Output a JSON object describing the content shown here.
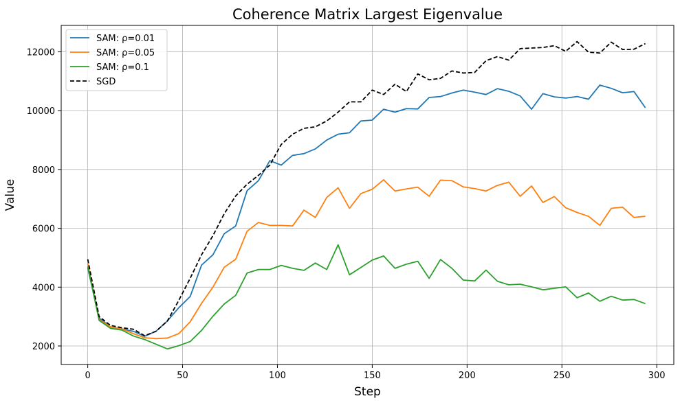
{
  "chart_data": {
    "type": "line",
    "title": "Coherence Matrix Largest Eigenvalue",
    "xlabel": "Step",
    "ylabel": "Value",
    "xlim": [
      -14,
      309
    ],
    "ylim": [
      1370,
      12900
    ],
    "xticks": [
      0,
      50,
      100,
      150,
      200,
      250,
      300
    ],
    "yticks": [
      2000,
      4000,
      6000,
      8000,
      10000,
      12000
    ],
    "grid": true,
    "legend_position": "top-left",
    "x": [
      0,
      6,
      12,
      18,
      24,
      30,
      36,
      42,
      48,
      54,
      60,
      66,
      72,
      78,
      84,
      90,
      96,
      102,
      108,
      114,
      120,
      126,
      132,
      138,
      144,
      150,
      156,
      162,
      168,
      174,
      180,
      186,
      192,
      198,
      204,
      210,
      216,
      222,
      228,
      234,
      240,
      246,
      252,
      258,
      264,
      270,
      276,
      282,
      288,
      294
    ],
    "series": [
      {
        "name": "SAM: ρ=0.01",
        "color": "#1f77b4",
        "dash": "solid",
        "values": [
          4650,
          2950,
          2650,
          2580,
          2500,
          2330,
          2500,
          2850,
          3300,
          3680,
          4750,
          5100,
          5820,
          6080,
          7280,
          7620,
          8300,
          8150,
          8480,
          8540,
          8700,
          9000,
          9200,
          9250,
          9650,
          9680,
          10050,
          9950,
          10070,
          10060,
          10450,
          10480,
          10600,
          10700,
          10630,
          10550,
          10750,
          10660,
          10500,
          10050,
          10580,
          10470,
          10430,
          10480,
          10390,
          10870,
          10760,
          10610,
          10650,
          10100
        ]
      },
      {
        "name": "SAM: ρ=0.05",
        "color": "#ff7f0e",
        "dash": "solid",
        "values": [
          4800,
          2900,
          2650,
          2580,
          2420,
          2280,
          2250,
          2270,
          2420,
          2820,
          3450,
          4000,
          4680,
          4950,
          5900,
          6200,
          6100,
          6100,
          6080,
          6620,
          6370,
          7050,
          7380,
          6680,
          7180,
          7330,
          7650,
          7270,
          7340,
          7400,
          7090,
          7640,
          7620,
          7410,
          7350,
          7270,
          7460,
          7570,
          7090,
          7440,
          6880,
          7080,
          6700,
          6540,
          6410,
          6100,
          6680,
          6720,
          6370,
          6410
        ]
      },
      {
        "name": "SAM: ρ=0.1",
        "color": "#2ca02c",
        "dash": "solid",
        "values": [
          4700,
          2870,
          2600,
          2540,
          2340,
          2220,
          2060,
          1900,
          2010,
          2150,
          2530,
          3010,
          3430,
          3720,
          4480,
          4600,
          4600,
          4740,
          4640,
          4570,
          4820,
          4600,
          5440,
          4420,
          4670,
          4920,
          5060,
          4640,
          4780,
          4880,
          4300,
          4940,
          4640,
          4240,
          4210,
          4580,
          4200,
          4080,
          4100,
          4010,
          3910,
          3960,
          4010,
          3640,
          3800,
          3520,
          3690,
          3560,
          3580,
          3440
        ]
      },
      {
        "name": "SGD",
        "color": "#000000",
        "dash": "dashed",
        "values": [
          4950,
          3000,
          2700,
          2620,
          2570,
          2350,
          2500,
          2850,
          3550,
          4300,
          5100,
          5750,
          6500,
          7100,
          7500,
          7800,
          8150,
          8850,
          9200,
          9400,
          9450,
          9650,
          9950,
          10300,
          10300,
          10700,
          10550,
          10900,
          10650,
          11250,
          11050,
          11100,
          11350,
          11280,
          11300,
          11700,
          11840,
          11720,
          12110,
          12130,
          12150,
          12210,
          12020,
          12350,
          11990,
          11960,
          12330,
          12080,
          12090,
          12280
        ]
      }
    ]
  }
}
